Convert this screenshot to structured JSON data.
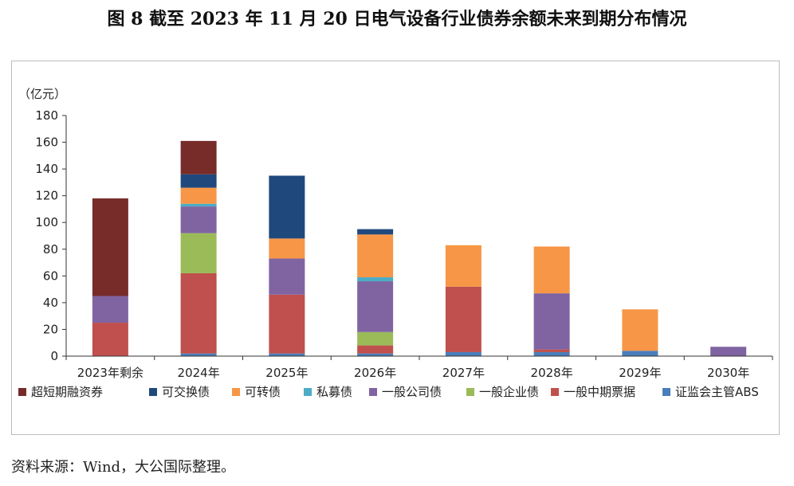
{
  "title": "图 8  截至 2023 年 11 月 20 日电气设备行业债券余额未来到期分布情况",
  "source": "资料来源：Wind，大公国际整理。",
  "chart_data": {
    "type": "bar",
    "stacked": true,
    "unit_label": "（亿元）",
    "ylim": [
      0,
      180
    ],
    "yticks": [
      0,
      20,
      40,
      60,
      80,
      100,
      120,
      140,
      160,
      180
    ],
    "categories": [
      "2023年剩余",
      "2024年",
      "2025年",
      "2026年",
      "2027年",
      "2028年",
      "2029年",
      "2030年"
    ],
    "series": [
      {
        "name": "证监会主管ABS",
        "color": "#4A7EBB",
        "values": [
          0,
          2,
          2,
          2,
          3,
          3,
          4,
          0
        ]
      },
      {
        "name": "一般中期票据",
        "color": "#C0504D",
        "values": [
          25,
          60,
          44,
          6,
          49,
          2,
          0,
          0
        ]
      },
      {
        "name": "一般企业债",
        "color": "#9BBB59",
        "values": [
          0,
          30,
          0,
          10,
          0,
          0,
          0,
          0
        ]
      },
      {
        "name": "一般公司债",
        "color": "#8064A2",
        "values": [
          20,
          20,
          27,
          38,
          0,
          42,
          0,
          7
        ]
      },
      {
        "name": "私募债",
        "color": "#4BACC6",
        "values": [
          0,
          2,
          0,
          3,
          0,
          0,
          0,
          0
        ]
      },
      {
        "name": "可转债",
        "color": "#F79646",
        "values": [
          0,
          12,
          15,
          32,
          31,
          35,
          31,
          0
        ]
      },
      {
        "name": "可交换债",
        "color": "#1F497D",
        "values": [
          0,
          10,
          47,
          4,
          0,
          0,
          0,
          0
        ]
      },
      {
        "name": "超短期融资券",
        "color": "#772C2A",
        "values": [
          73,
          25,
          0,
          0,
          0,
          0,
          0,
          0
        ]
      }
    ],
    "legend_order": [
      "超短期融资券",
      "可交换债",
      "可转债",
      "私募债",
      "一般公司债",
      "一般企业债",
      "一般中期票据",
      "证监会主管ABS"
    ],
    "legend_position": "bottom",
    "grid": false
  }
}
